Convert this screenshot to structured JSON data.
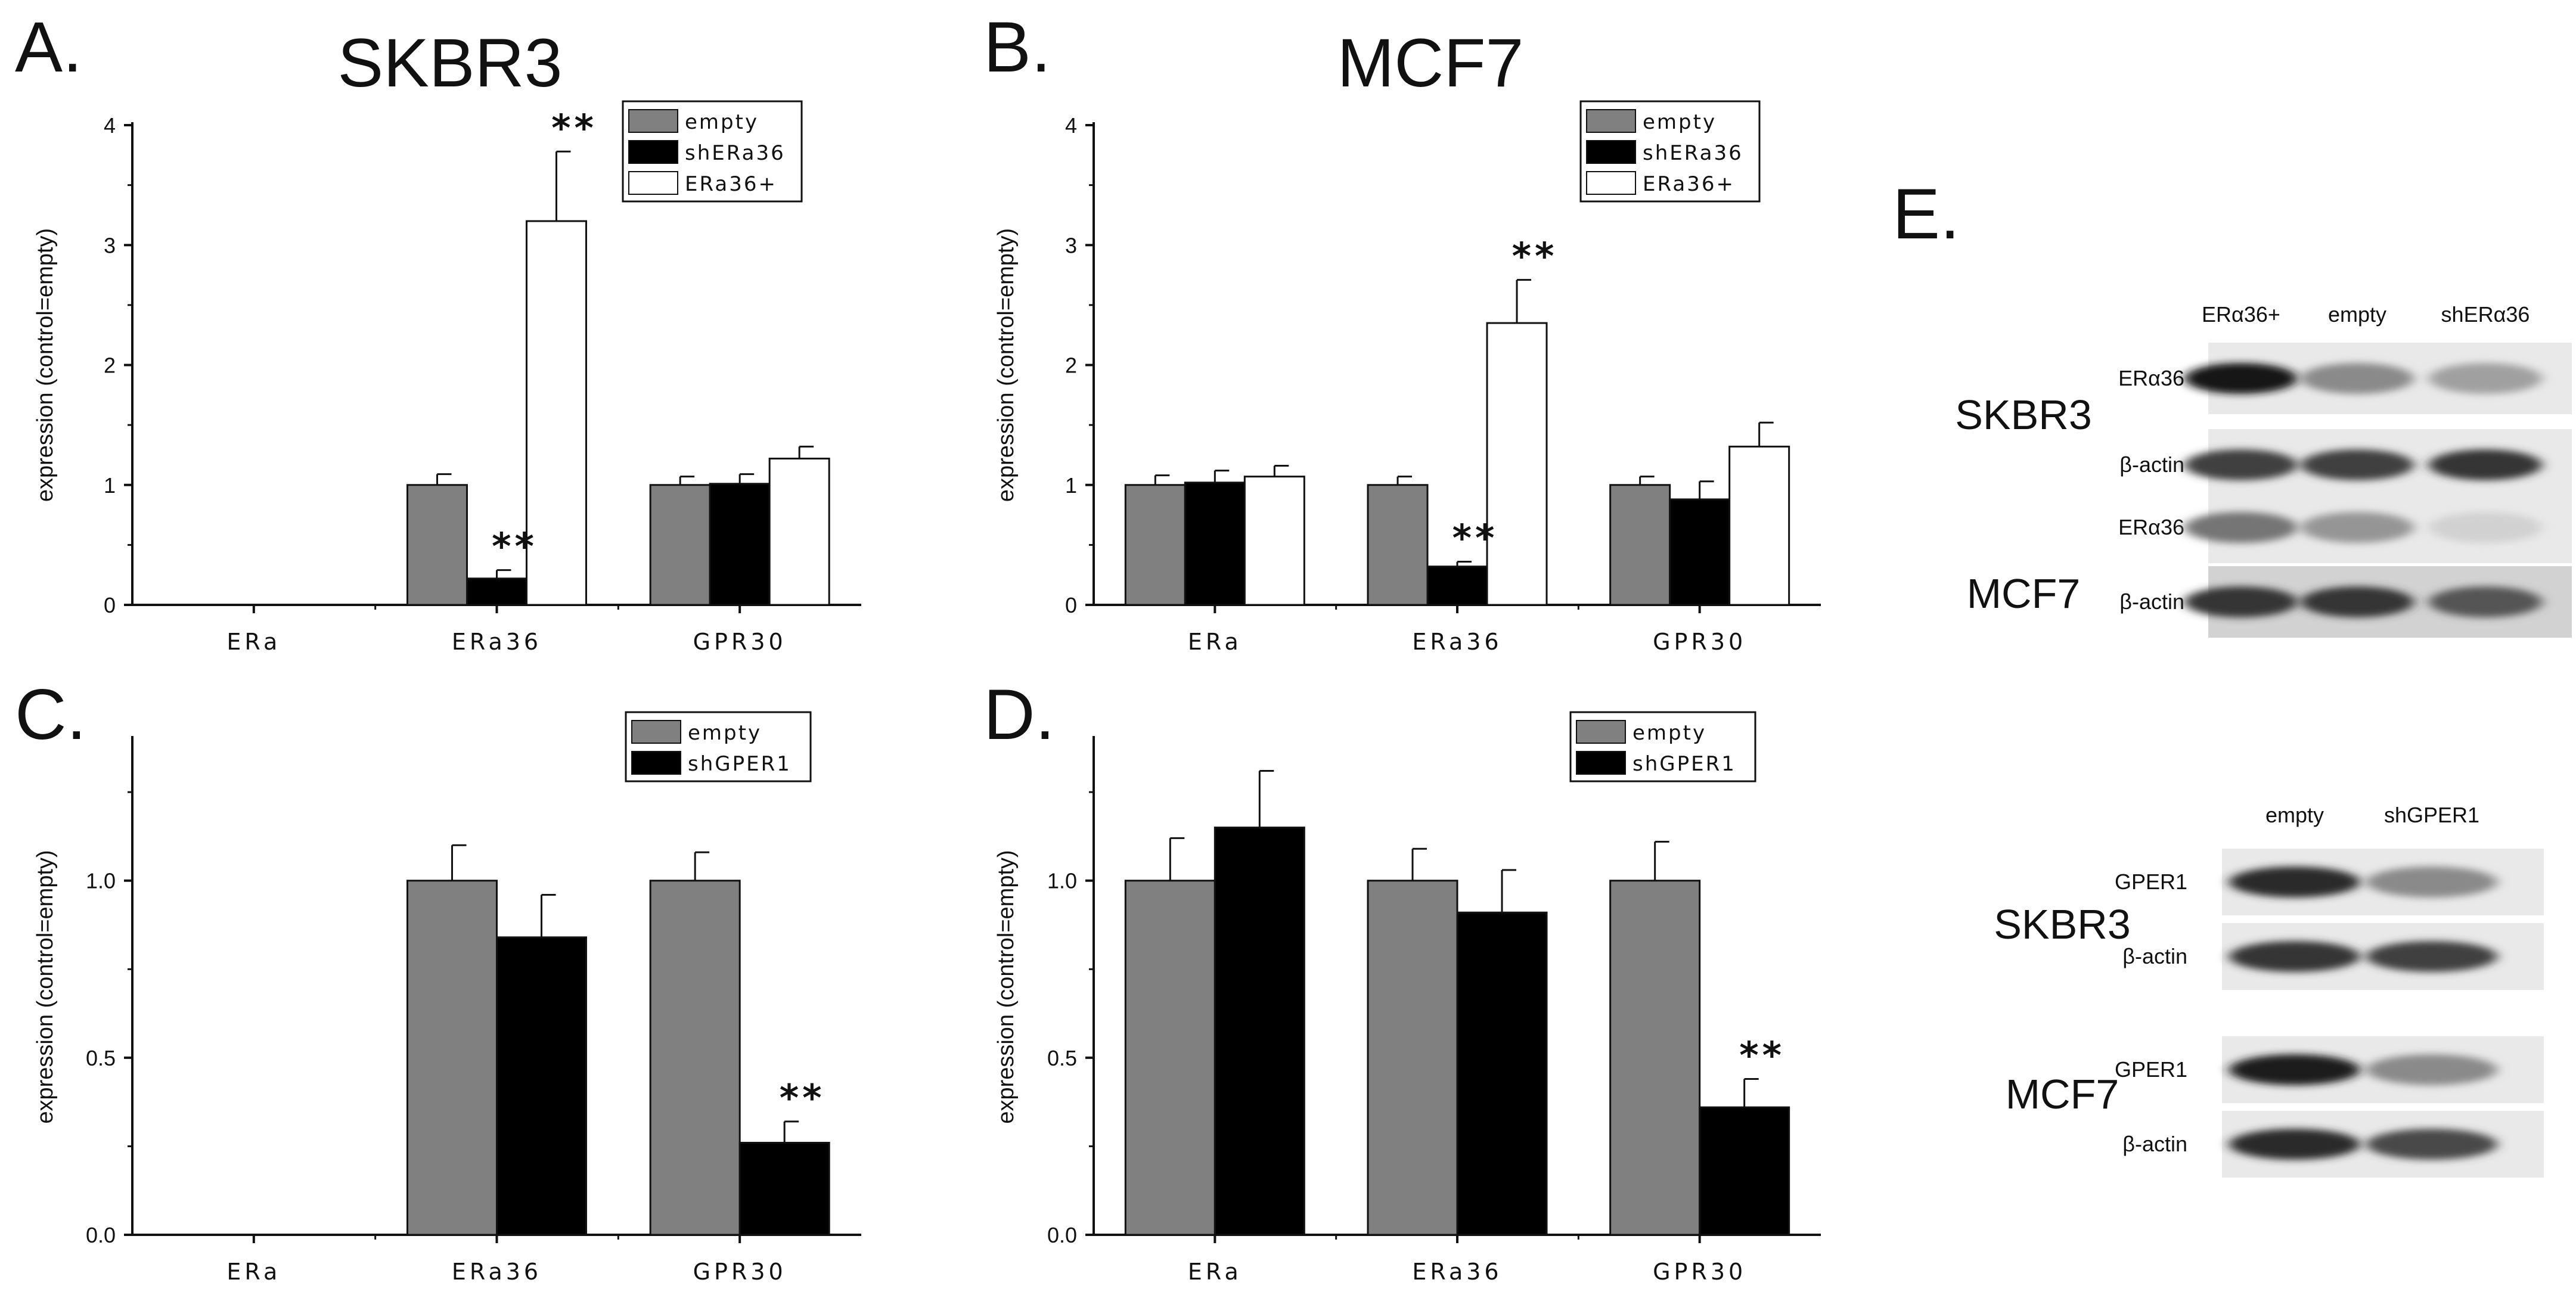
{
  "chart_data": [
    {
      "panel": "A.",
      "title": "SKBR3",
      "type": "bar",
      "ylabel": "expression (control=empty)",
      "ylim": [
        0,
        4
      ],
      "yticks": [
        "0",
        "1",
        "2",
        "3",
        "4"
      ],
      "categories": [
        "ERa",
        "ERa36",
        "GPR30"
      ],
      "series": [
        {
          "name": "empty",
          "color": "#808080",
          "values": [
            null,
            1.0,
            1.0
          ],
          "errors": [
            null,
            0.09,
            0.07
          ]
        },
        {
          "name": "shERa36",
          "color": "#000000",
          "values": [
            null,
            0.22,
            1.01
          ],
          "errors": [
            null,
            0.07,
            0.08
          ]
        },
        {
          "name": "ERa36+",
          "color": "#ffffff",
          "values": [
            null,
            3.2,
            1.22
          ],
          "errors": [
            null,
            0.58,
            0.1
          ]
        }
      ],
      "annotations": [
        {
          "text": "**",
          "category": 1,
          "series": 1
        },
        {
          "text": "**",
          "category": 1,
          "series": 2
        }
      ]
    },
    {
      "panel": "B.",
      "title": "MCF7",
      "type": "bar",
      "ylabel": "expression (control=empty)",
      "ylim": [
        0,
        4
      ],
      "yticks": [
        "0",
        "1",
        "2",
        "3",
        "4"
      ],
      "categories": [
        "ERa",
        "ERa36",
        "GPR30"
      ],
      "series": [
        {
          "name": "empty",
          "color": "#808080",
          "values": [
            1.0,
            1.0,
            1.0
          ],
          "errors": [
            0.08,
            0.07,
            0.07
          ]
        },
        {
          "name": "shERa36",
          "color": "#000000",
          "values": [
            1.02,
            0.32,
            0.88
          ],
          "errors": [
            0.1,
            0.04,
            0.15
          ]
        },
        {
          "name": "ERa36+",
          "color": "#ffffff",
          "values": [
            1.07,
            2.35,
            1.32
          ],
          "errors": [
            0.09,
            0.36,
            0.2
          ]
        }
      ],
      "annotations": [
        {
          "text": "**",
          "category": 1,
          "series": 1
        },
        {
          "text": "**",
          "category": 1,
          "series": 2
        }
      ]
    },
    {
      "panel": "C.",
      "title": "",
      "type": "bar",
      "ylabel": "expression (control=empty)",
      "ylim": [
        0,
        1.4
      ],
      "yticks": [
        "0.0",
        "0.5",
        "1.0"
      ],
      "categories": [
        "ERa",
        "ERa36",
        "GPR30"
      ],
      "series": [
        {
          "name": "empty",
          "color": "#808080",
          "values": [
            null,
            1.0,
            1.0
          ],
          "errors": [
            null,
            0.1,
            0.08
          ]
        },
        {
          "name": "shGPER1",
          "color": "#000000",
          "values": [
            null,
            0.84,
            0.26
          ],
          "errors": [
            null,
            0.12,
            0.06
          ]
        }
      ],
      "annotations": [
        {
          "text": "**",
          "category": 2,
          "series": 1
        }
      ]
    },
    {
      "panel": "D.",
      "title": "",
      "type": "bar",
      "ylabel": "expression (control=empty)",
      "ylim": [
        0,
        1.4
      ],
      "yticks": [
        "0.0",
        "0.5",
        "1.0"
      ],
      "categories": [
        "ERa",
        "ERa36",
        "GPR30"
      ],
      "series": [
        {
          "name": "empty",
          "color": "#808080",
          "values": [
            1.0,
            1.0,
            1.0
          ],
          "errors": [
            0.12,
            0.09,
            0.11
          ]
        },
        {
          "name": "shGPER1",
          "color": "#000000",
          "values": [
            1.15,
            0.91,
            0.36
          ],
          "errors": [
            0.16,
            0.12,
            0.08
          ]
        }
      ],
      "annotations": [
        {
          "text": "**",
          "category": 2,
          "series": 1
        }
      ]
    }
  ],
  "western_blot": {
    "panel": "E.",
    "top": {
      "lanes": [
        "ERα36+",
        "empty",
        "shERα36"
      ],
      "groups": [
        {
          "cell_line": "SKBR3",
          "rows": [
            "ERα36",
            "β-actin"
          ],
          "intensities": [
            [
              1.0,
              0.45,
              0.35
            ],
            [
              0.8,
              0.8,
              0.85
            ]
          ]
        },
        {
          "cell_line": "MCF7",
          "rows": [
            "ERα36",
            "β-actin"
          ],
          "intensities": [
            [
              0.55,
              0.4,
              0.12
            ],
            [
              0.85,
              0.85,
              0.7
            ]
          ]
        }
      ]
    },
    "bottom": {
      "lanes": [
        "empty",
        "shGPER1"
      ],
      "groups": [
        {
          "cell_line": "SKBR3",
          "rows": [
            "GPER1",
            "β-actin"
          ],
          "intensities": [
            [
              0.9,
              0.45
            ],
            [
              0.85,
              0.8
            ]
          ]
        },
        {
          "cell_line": "MCF7",
          "rows": [
            "GPER1",
            "β-actin"
          ],
          "intensities": [
            [
              0.95,
              0.45
            ],
            [
              0.9,
              0.75
            ]
          ]
        }
      ]
    }
  }
}
